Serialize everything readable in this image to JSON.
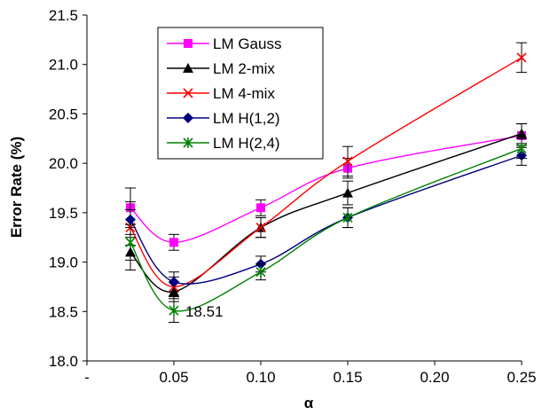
{
  "chart_data": {
    "type": "line",
    "ylabel": "Error Rate (%)",
    "xlabel": "α",
    "x": [
      0.025,
      0.05,
      0.1,
      0.15,
      0.25
    ],
    "xlim": [
      0,
      0.25
    ],
    "ylim": [
      18.0,
      21.5
    ],
    "x_ticks": [
      {
        "value": 0,
        "label": "-"
      },
      {
        "value": 0.05,
        "label": "0.05"
      },
      {
        "value": 0.1,
        "label": "0.10"
      },
      {
        "value": 0.15,
        "label": "0.15"
      },
      {
        "value": 0.2,
        "label": "0.20"
      },
      {
        "value": 0.25,
        "label": "0.25"
      }
    ],
    "y_ticks": [
      {
        "value": 18.0,
        "label": "18.0"
      },
      {
        "value": 18.5,
        "label": "18.5"
      },
      {
        "value": 19.0,
        "label": "19.0"
      },
      {
        "value": 19.5,
        "label": "19.5"
      },
      {
        "value": 20.0,
        "label": "20.0"
      },
      {
        "value": 20.5,
        "label": "20.5"
      },
      {
        "value": 21.0,
        "label": "21.0"
      },
      {
        "value": 21.5,
        "label": "21.5"
      }
    ],
    "grid": false,
    "legend_position": "top-left",
    "series": [
      {
        "name": "LM Gauss",
        "color": "#ff00ff",
        "marker": "square",
        "values": [
          19.55,
          19.2,
          19.55,
          19.95,
          20.28
        ],
        "err": [
          0.2,
          0.08,
          0.08,
          0.1,
          0.12
        ]
      },
      {
        "name": "LM 2-mix",
        "color": "#000000",
        "marker": "triangle",
        "values": [
          19.1,
          18.7,
          19.35,
          19.7,
          20.3
        ],
        "err": [
          0.18,
          0.1,
          0.1,
          0.12,
          0.1
        ]
      },
      {
        "name": "LM 4-mix",
        "color": "#ff0000",
        "marker": "x",
        "values": [
          19.35,
          18.75,
          19.35,
          20.02,
          21.07
        ],
        "err": [
          0.18,
          0.1,
          0.1,
          0.15,
          0.15
        ]
      },
      {
        "name": "LM H(1,2)",
        "color": "#000080",
        "marker": "diamond",
        "values": [
          19.43,
          18.8,
          18.98,
          19.45,
          20.08
        ],
        "err": [
          0.18,
          0.1,
          0.08,
          0.1,
          0.1
        ]
      },
      {
        "name": "LM H(2,4)",
        "color": "#008000",
        "marker": "star",
        "values": [
          19.2,
          18.51,
          18.9,
          19.45,
          20.15
        ],
        "err": [
          0.18,
          0.12,
          0.08,
          0.1,
          0.1
        ]
      }
    ],
    "annotations": [
      {
        "text": "18.51",
        "x": 0.05,
        "y": 18.51
      }
    ]
  }
}
